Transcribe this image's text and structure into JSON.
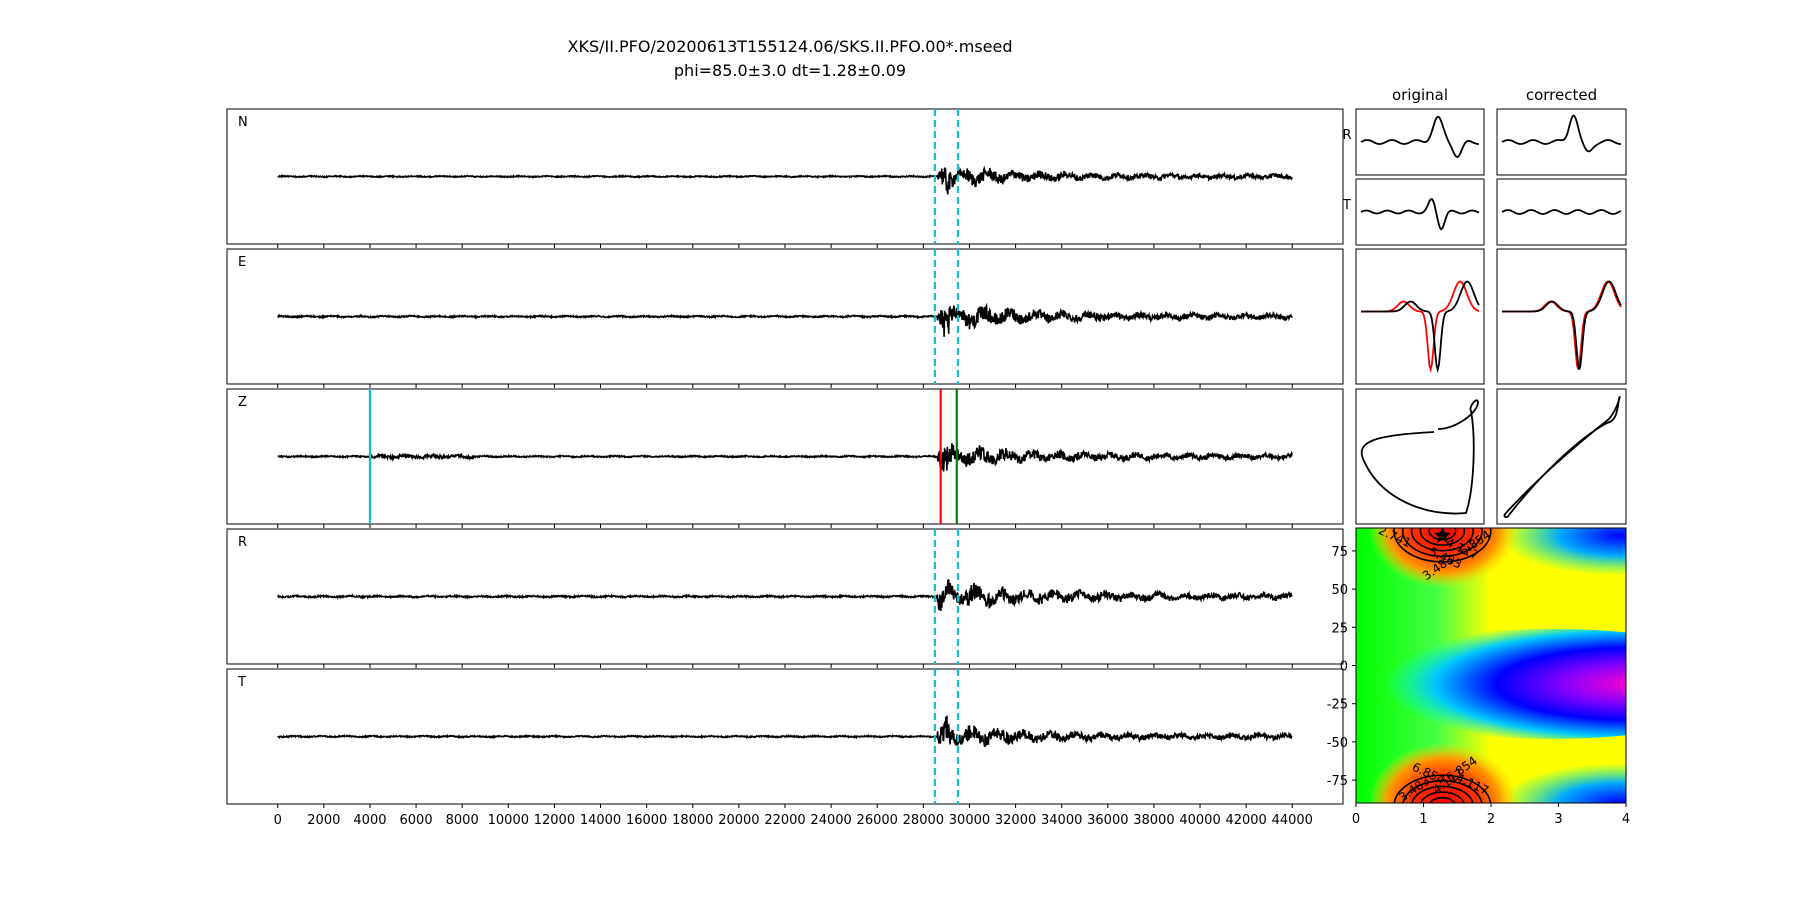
{
  "title": {
    "line1": "XKS/II.PFO/20200613T155124.06/SKS.II.PFO.00*.mseed",
    "line2": "phi=85.0±3.0 dt=1.28±0.09"
  },
  "chart_data": [
    {
      "type": "line",
      "id": "seismograms",
      "panels": [
        {
          "label": "N",
          "amp": 0.45,
          "markers": [
            {
              "x": 28500,
              "color": "#17becf",
              "style": "dashed"
            },
            {
              "x": 29500,
              "color": "#17becf",
              "style": "dashed"
            }
          ]
        },
        {
          "label": "E",
          "amp": 0.55,
          "markers": [
            {
              "x": 28500,
              "color": "#17becf",
              "style": "dashed"
            },
            {
              "x": 29500,
              "color": "#17becf",
              "style": "dashed"
            }
          ]
        },
        {
          "label": "Z",
          "amp": 0.5,
          "markers": [
            {
              "x": 4000,
              "color": "#17becf",
              "style": "solid"
            },
            {
              "x": 28750,
              "color": "#ff0000",
              "style": "solid"
            },
            {
              "x": 29450,
              "color": "#008000",
              "style": "solid"
            }
          ]
        },
        {
          "label": "R",
          "amp": 0.6,
          "markers": [
            {
              "x": 28500,
              "color": "#17becf",
              "style": "dashed"
            },
            {
              "x": 29500,
              "color": "#17becf",
              "style": "dashed"
            }
          ]
        },
        {
          "label": "T",
          "amp": 0.5,
          "markers": [
            {
              "x": 28500,
              "color": "#17becf",
              "style": "dashed"
            },
            {
              "x": 29500,
              "color": "#17becf",
              "style": "dashed"
            }
          ]
        }
      ],
      "x_range": [
        0,
        44000
      ],
      "xlim": [
        -2200,
        46200
      ],
      "xticks": [
        0,
        2000,
        4000,
        6000,
        8000,
        10000,
        12000,
        14000,
        16000,
        18000,
        20000,
        22000,
        24000,
        26000,
        28000,
        30000,
        32000,
        34000,
        36000,
        38000,
        40000,
        42000,
        44000
      ]
    },
    {
      "type": "line",
      "id": "particle-motion",
      "column_titles": [
        "original",
        "corrected"
      ],
      "row_labels": [
        "R",
        "T"
      ],
      "colors": {
        "trace": "#000000",
        "overlay": "#ff0000"
      }
    },
    {
      "type": "heatmap",
      "id": "error-surface",
      "xlim": [
        0,
        4
      ],
      "ylim": [
        -90,
        90
      ],
      "xticks": [
        0,
        1,
        2,
        3,
        4
      ],
      "yticks": [
        75,
        50,
        25,
        0,
        -25,
        -50,
        -75
      ],
      "best": {
        "x": 1.28,
        "y": 85.0
      },
      "contour_labels": [
        "3.483",
        "5.483",
        "6.854",
        "4.117",
        "4.117",
        "6.854",
        "6.854",
        "4.117",
        "3.483",
        "2.741"
      ]
    }
  ]
}
